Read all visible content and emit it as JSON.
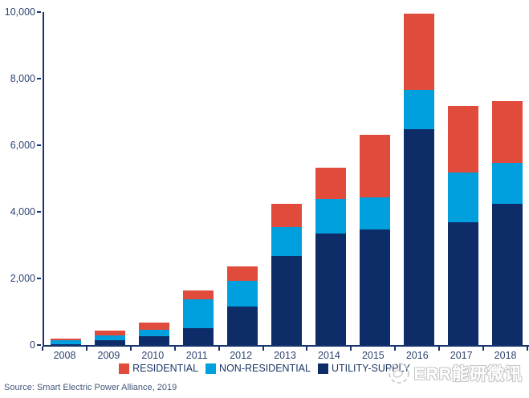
{
  "chart_data": {
    "type": "bar",
    "stacked": true,
    "title": "",
    "xlabel": "",
    "ylabel": "",
    "categories": [
      "2008",
      "2009",
      "2010",
      "2011",
      "2012",
      "2013",
      "2014",
      "2015",
      "2016",
      "2017",
      "2018"
    ],
    "series": [
      {
        "name": "RESIDENTIAL",
        "color": "#E14B3B",
        "values": [
          70,
          145,
          215,
          265,
          435,
          680,
          925,
          1890,
          2290,
          2015,
          1845
        ]
      },
      {
        "name": "NON-RESIDENTIAL",
        "color": "#00A0DF",
        "values": [
          105,
          145,
          200,
          885,
          770,
          885,
          1045,
          965,
          1180,
          1485,
          1245
        ]
      },
      {
        "name": "UTILITY-SUPPLY",
        "color": "#0D2C68",
        "values": [
          30,
          145,
          255,
          495,
          1150,
          2665,
          3345,
          3465,
          6475,
          3685,
          4230
        ]
      }
    ],
    "ylim": [
      0,
      10000
    ],
    "y_ticks": [
      {
        "value": 10000,
        "label": "10,000"
      },
      {
        "value": 8000,
        "label": "8,000"
      },
      {
        "value": 6000,
        "label": "6,000"
      },
      {
        "value": 4000,
        "label": "4,000"
      },
      {
        "value": 2000,
        "label": "2,000"
      },
      {
        "value": 0,
        "label": "0"
      }
    ],
    "grid": false,
    "legend_position": "bottom"
  },
  "footer": {
    "source": "Source: Smart Electric Power Alliance, 2019"
  },
  "watermark": {
    "text": "ERR能研微讯"
  },
  "colors": {
    "axis": "#16346E",
    "tick_label": "#2E4370",
    "legend_text": "#1C3667",
    "watermark_gray": "#C6C6C6"
  }
}
